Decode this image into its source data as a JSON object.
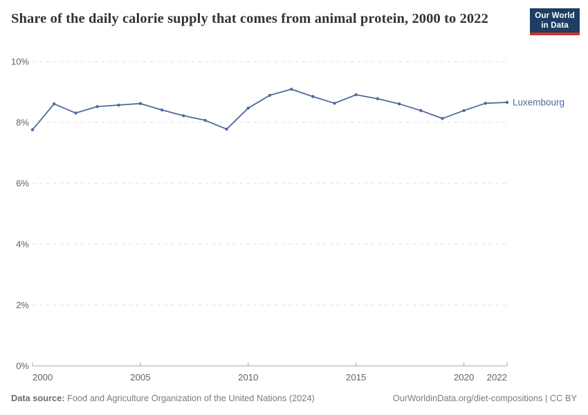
{
  "header": {
    "title": "Share of the daily calorie supply that comes from animal protein, 2000 to 2022",
    "logo": {
      "line1": "Our World",
      "line2": "in Data"
    }
  },
  "chart_data": {
    "type": "line",
    "title": "Share of the daily calorie supply that comes from animal protein, 2000 to 2022",
    "xlabel": "",
    "ylabel": "",
    "xlim": [
      2000,
      2022
    ],
    "ylim": [
      0,
      10
    ],
    "grid": "horizontal-dashed",
    "legend_position": "end-of-line",
    "x_ticks": [
      2000,
      2005,
      2010,
      2015,
      2020,
      2022
    ],
    "y_ticks": [
      0,
      2,
      4,
      6,
      8,
      10
    ],
    "y_tick_suffix": "%",
    "series": [
      {
        "name": "Luxembourg",
        "color": "#4C6A9C",
        "x": [
          2000,
          2001,
          2002,
          2003,
          2004,
          2005,
          2006,
          2007,
          2008,
          2009,
          2010,
          2011,
          2012,
          2013,
          2014,
          2015,
          2016,
          2017,
          2018,
          2019,
          2020,
          2021,
          2022
        ],
        "values": [
          7.76,
          8.61,
          8.31,
          8.52,
          8.57,
          8.62,
          8.41,
          8.22,
          8.07,
          7.78,
          8.47,
          8.89,
          9.09,
          8.85,
          8.63,
          8.91,
          8.78,
          8.61,
          8.39,
          8.13,
          8.39,
          8.63,
          8.66
        ]
      }
    ]
  },
  "footer": {
    "datasource_label": "Data source:",
    "datasource_text": "Food and Agriculture Organization of the United Nations (2024)",
    "credit": "OurWorldinData.org/diet-compositions | CC BY"
  },
  "colors": {
    "line": "#4C6A9C",
    "grid": "#dddddd",
    "axis": "#a5a5a5",
    "tick_label": "#616161",
    "title": "#333333",
    "footer": "#7b7b7b",
    "logo_bg": "#1d3d63",
    "logo_red": "#cf342e"
  }
}
